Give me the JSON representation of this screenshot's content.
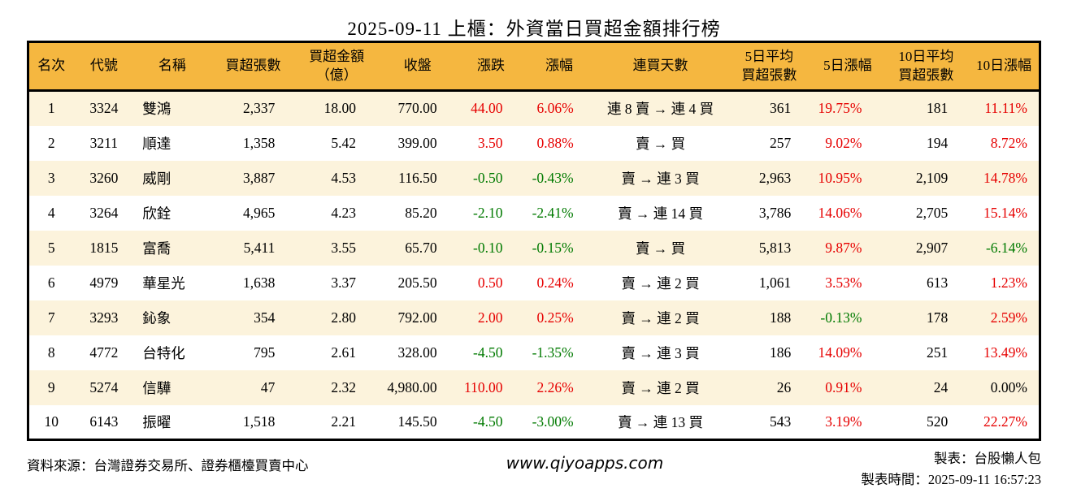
{
  "colors": {
    "red": "#e60000",
    "green": "#007a00",
    "black": "#000000",
    "header_bg": "#f5b740",
    "stripe_bg": "#fcf3dc",
    "border": "#000000"
  },
  "chart_data": {
    "type": "table",
    "title": "2025-09-11 上櫃：外資當日買超金額排行榜",
    "columns": [
      {
        "key": "rank",
        "label_lines": [
          "名次"
        ]
      },
      {
        "key": "code",
        "label_lines": [
          "代號"
        ]
      },
      {
        "key": "name",
        "label_lines": [
          "名稱"
        ]
      },
      {
        "key": "net_buy_shares",
        "label_lines": [
          "買超張數"
        ]
      },
      {
        "key": "net_buy_amount",
        "label_lines": [
          "買超金額",
          "（億）"
        ]
      },
      {
        "key": "close",
        "label_lines": [
          "收盤"
        ]
      },
      {
        "key": "change",
        "label_lines": [
          "漲跌"
        ]
      },
      {
        "key": "change_pct",
        "label_lines": [
          "漲幅"
        ]
      },
      {
        "key": "streak",
        "label_lines": [
          "連買天數"
        ]
      },
      {
        "key": "avg5_shares",
        "label_lines": [
          "5日平均",
          "買超張數"
        ]
      },
      {
        "key": "pct5",
        "label_lines": [
          "5日漲幅"
        ]
      },
      {
        "key": "avg10_shares",
        "label_lines": [
          "10日平均",
          "買超張數"
        ]
      },
      {
        "key": "pct10",
        "label_lines": [
          "10日漲幅"
        ]
      }
    ],
    "rows": [
      {
        "rank": "1",
        "code": "3324",
        "name": "雙鴻",
        "net_buy_shares": "2,337",
        "net_buy_amount": "18.00",
        "close": "770.00",
        "change": "44.00",
        "change_dir": "up",
        "change_pct": "6.06%",
        "change_pct_dir": "up",
        "streak": "連 8 賣 → 連 4 買",
        "avg5_shares": "361",
        "pct5": "19.75%",
        "pct5_dir": "up",
        "avg10_shares": "181",
        "pct10": "11.11%",
        "pct10_dir": "up"
      },
      {
        "rank": "2",
        "code": "3211",
        "name": "順達",
        "net_buy_shares": "1,358",
        "net_buy_amount": "5.42",
        "close": "399.00",
        "change": "3.50",
        "change_dir": "up",
        "change_pct": "0.88%",
        "change_pct_dir": "up",
        "streak": "賣 → 買",
        "avg5_shares": "257",
        "pct5": "9.02%",
        "pct5_dir": "up",
        "avg10_shares": "194",
        "pct10": "8.72%",
        "pct10_dir": "up"
      },
      {
        "rank": "3",
        "code": "3260",
        "name": "威剛",
        "net_buy_shares": "3,887",
        "net_buy_amount": "4.53",
        "close": "116.50",
        "change": "-0.50",
        "change_dir": "down",
        "change_pct": "-0.43%",
        "change_pct_dir": "down",
        "streak": "賣 → 連 3 買",
        "avg5_shares": "2,963",
        "pct5": "10.95%",
        "pct5_dir": "up",
        "avg10_shares": "2,109",
        "pct10": "14.78%",
        "pct10_dir": "up"
      },
      {
        "rank": "4",
        "code": "3264",
        "name": "欣銓",
        "net_buy_shares": "4,965",
        "net_buy_amount": "4.23",
        "close": "85.20",
        "change": "-2.10",
        "change_dir": "down",
        "change_pct": "-2.41%",
        "change_pct_dir": "down",
        "streak": "賣 → 連 14 買",
        "avg5_shares": "3,786",
        "pct5": "14.06%",
        "pct5_dir": "up",
        "avg10_shares": "2,705",
        "pct10": "15.14%",
        "pct10_dir": "up"
      },
      {
        "rank": "5",
        "code": "1815",
        "name": "富喬",
        "net_buy_shares": "5,411",
        "net_buy_amount": "3.55",
        "close": "65.70",
        "change": "-0.10",
        "change_dir": "down",
        "change_pct": "-0.15%",
        "change_pct_dir": "down",
        "streak": "賣 → 買",
        "avg5_shares": "5,813",
        "pct5": "9.87%",
        "pct5_dir": "up",
        "avg10_shares": "2,907",
        "pct10": "-6.14%",
        "pct10_dir": "down"
      },
      {
        "rank": "6",
        "code": "4979",
        "name": "華星光",
        "net_buy_shares": "1,638",
        "net_buy_amount": "3.37",
        "close": "205.50",
        "change": "0.50",
        "change_dir": "up",
        "change_pct": "0.24%",
        "change_pct_dir": "up",
        "streak": "賣 → 連 2 買",
        "avg5_shares": "1,061",
        "pct5": "3.53%",
        "pct5_dir": "up",
        "avg10_shares": "613",
        "pct10": "1.23%",
        "pct10_dir": "up"
      },
      {
        "rank": "7",
        "code": "3293",
        "name": "鈊象",
        "net_buy_shares": "354",
        "net_buy_amount": "2.80",
        "close": "792.00",
        "change": "2.00",
        "change_dir": "up",
        "change_pct": "0.25%",
        "change_pct_dir": "up",
        "streak": "賣 → 連 2 買",
        "avg5_shares": "188",
        "pct5": "-0.13%",
        "pct5_dir": "down",
        "avg10_shares": "178",
        "pct10": "2.59%",
        "pct10_dir": "up"
      },
      {
        "rank": "8",
        "code": "4772",
        "name": "台特化",
        "net_buy_shares": "795",
        "net_buy_amount": "2.61",
        "close": "328.00",
        "change": "-4.50",
        "change_dir": "down",
        "change_pct": "-1.35%",
        "change_pct_dir": "down",
        "streak": "賣 → 連 3 買",
        "avg5_shares": "186",
        "pct5": "14.09%",
        "pct5_dir": "up",
        "avg10_shares": "251",
        "pct10": "13.49%",
        "pct10_dir": "up"
      },
      {
        "rank": "9",
        "code": "5274",
        "name": "信驊",
        "net_buy_shares": "47",
        "net_buy_amount": "2.32",
        "close": "4,980.00",
        "change": "110.00",
        "change_dir": "up",
        "change_pct": "2.26%",
        "change_pct_dir": "up",
        "streak": "賣 → 連 2 買",
        "avg5_shares": "26",
        "pct5": "0.91%",
        "pct5_dir": "up",
        "avg10_shares": "24",
        "pct10": "0.00%",
        "pct10_dir": "flat"
      },
      {
        "rank": "10",
        "code": "6143",
        "name": "振曜",
        "net_buy_shares": "1,518",
        "net_buy_amount": "2.21",
        "close": "145.50",
        "change": "-4.50",
        "change_dir": "down",
        "change_pct": "-3.00%",
        "change_pct_dir": "down",
        "streak": "賣 → 連 13 買",
        "avg5_shares": "543",
        "pct5": "3.19%",
        "pct5_dir": "up",
        "avg10_shares": "520",
        "pct10": "22.27%",
        "pct10_dir": "up"
      }
    ]
  },
  "footer": {
    "source": "資料來源：台灣證券交易所、證券櫃檯買賣中心",
    "website": "www.qiyoapps.com",
    "maker": "製表：台股懶人包",
    "generated_time": "製表時間：2025-09-11 16:57:23"
  }
}
